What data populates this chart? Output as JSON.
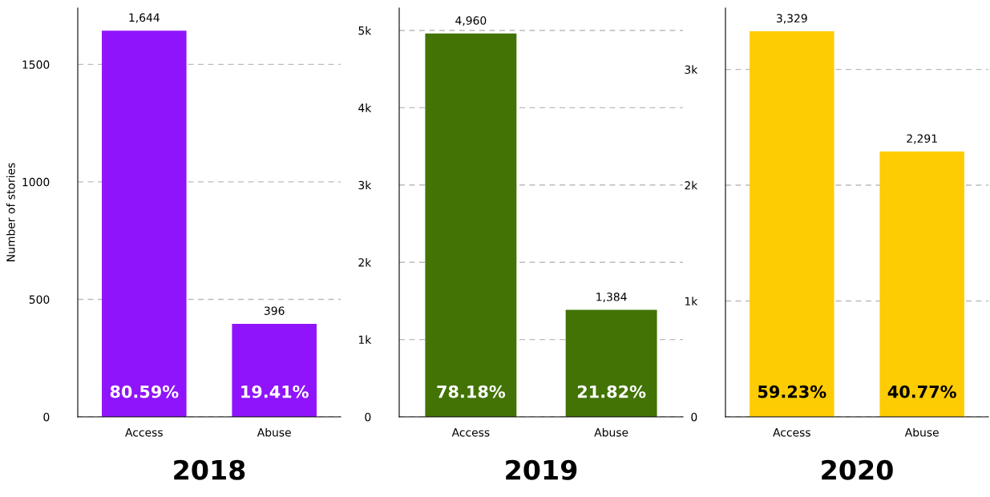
{
  "chart_data": [
    {
      "type": "bar",
      "title": "2018",
      "ylabel": "Number of stories",
      "categories": [
        "Access",
        "Abuse"
      ],
      "values": [
        1644,
        396
      ],
      "value_labels": [
        "1,644",
        "396"
      ],
      "color": "#8f14fb",
      "ylim": [
        0,
        1740
      ],
      "yticks": [
        0,
        500,
        1000,
        1500
      ],
      "grid": "y",
      "annotations": [
        {
          "text": "80.59%",
          "x": "Access",
          "y": 0
        },
        {
          "text": "19.41%",
          "x": "Abuse",
          "y": 0
        }
      ]
    },
    {
      "type": "bar",
      "title": "2019",
      "categories": [
        "Access",
        "Abuse"
      ],
      "values": [
        4960,
        1384
      ],
      "value_labels": [
        "4,960",
        "1,384"
      ],
      "color": "#427304",
      "ylim": [
        0,
        5290
      ],
      "yticks": [
        0,
        {
          "value": 1000,
          "label": "1k"
        },
        {
          "value": 2000,
          "label": "2k"
        },
        {
          "value": 3000,
          "label": "3k"
        },
        {
          "value": 4000,
          "label": "4k"
        },
        {
          "value": 5000,
          "label": "5k"
        }
      ],
      "grid": "y",
      "annotations": [
        {
          "text": "78.18%",
          "x": "Access",
          "y": 0
        },
        {
          "text": "21.82%",
          "x": "Abuse",
          "y": 0
        }
      ]
    },
    {
      "type": "bar",
      "title": "2020",
      "categories": [
        "Access",
        "Abuse"
      ],
      "values": [
        3329,
        2291
      ],
      "value_labels": [
        "3,329",
        "2,291"
      ],
      "color": "#fecc02",
      "ylim": [
        0,
        3530
      ],
      "yticks": [
        0,
        {
          "value": 1000,
          "label": "1k"
        },
        {
          "value": 2000,
          "label": "2k"
        },
        {
          "value": 3000,
          "label": "3k"
        }
      ],
      "grid": "y",
      "annotations": [
        {
          "text": "59.23%",
          "x": "Access",
          "y": 0
        },
        {
          "text": "40.77%",
          "x": "Abuse",
          "y": 0
        }
      ]
    }
  ]
}
